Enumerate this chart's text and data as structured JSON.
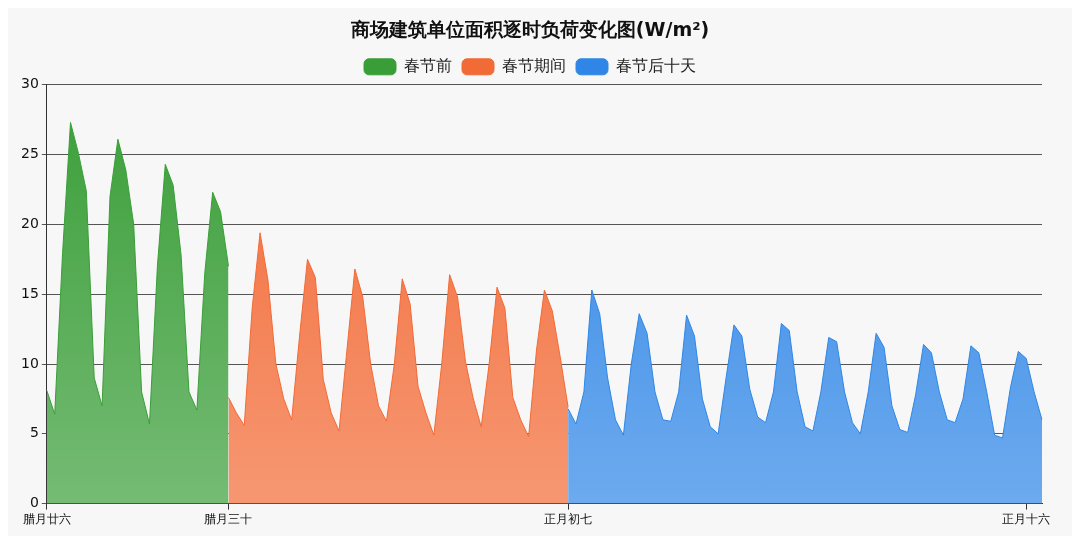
{
  "chart_data": {
    "type": "area",
    "title": "商场建筑单位面积逐时负荷变化图(W/m²)",
    "categories": [
      "腊月廿六",
      null,
      null,
      null,
      null,
      null,
      null,
      null,
      null,
      null,
      null,
      null,
      null,
      null,
      null,
      null,
      null,
      null,
      null,
      null,
      null,
      null,
      null,
      "腊月三十",
      null,
      null,
      null,
      null,
      null,
      null,
      null,
      null,
      null,
      null,
      null,
      null,
      null,
      null,
      null,
      null,
      null,
      null,
      null,
      null,
      null,
      null,
      null,
      null,
      null,
      null,
      null,
      null,
      null,
      null,
      null,
      null,
      null,
      null,
      null,
      null,
      null,
      null,
      null,
      null,
      null,
      null,
      "正月初七",
      null,
      null,
      null,
      null,
      null,
      null,
      null,
      null,
      null,
      null,
      null,
      null,
      null,
      null,
      null,
      null,
      null,
      null,
      null,
      null,
      null,
      null,
      null,
      null,
      null,
      null,
      null,
      null,
      null,
      null,
      null,
      null,
      null,
      null,
      null,
      null,
      null,
      null,
      null,
      null,
      null,
      null,
      null,
      null,
      null,
      null,
      null,
      null,
      null,
      null,
      null,
      null,
      null,
      null,
      null,
      null,
      null,
      "正月十六",
      null,
      null
    ],
    "ylim": [
      0,
      30
    ],
    "yticks": [
      0,
      5,
      10,
      15,
      20,
      25,
      30
    ],
    "grid": "y",
    "legend": "top",
    "series": [
      {
        "name": "春节前",
        "color": "#3a9e38",
        "values": [
          8.1,
          6.4,
          18,
          27.3,
          25.1,
          22.4,
          9.0,
          7.0,
          22,
          26.1,
          23.9,
          20,
          8,
          5.7,
          17,
          24.3,
          22.8,
          17.8,
          8,
          6.7,
          16.5,
          22.3,
          20.9,
          17,
          null,
          null,
          null,
          null,
          null,
          null,
          null,
          null,
          null,
          null,
          null,
          null,
          null,
          null,
          null,
          null,
          null,
          null,
          null,
          null,
          null,
          null,
          null,
          null,
          null,
          null,
          null,
          null,
          null,
          null,
          null,
          null,
          null,
          null,
          null,
          null,
          null,
          null,
          null,
          null,
          null,
          null,
          null,
          null,
          null,
          null,
          null,
          null,
          null,
          null,
          null,
          null,
          null,
          null,
          null,
          null,
          null,
          null,
          null,
          null,
          null,
          null,
          null,
          null,
          null,
          null,
          null,
          null,
          null,
          null,
          null,
          null,
          null,
          null,
          null,
          null,
          null,
          null,
          null,
          null,
          null,
          null,
          null,
          null,
          null,
          null,
          null,
          null,
          null,
          null,
          null,
          null,
          null,
          null,
          null,
          null,
          null,
          null,
          null,
          null,
          null,
          null,
          null
        ]
      },
      {
        "name": "春节期间",
        "color": "#f26a36",
        "values": [
          null,
          null,
          null,
          null,
          null,
          null,
          null,
          null,
          null,
          null,
          null,
          null,
          null,
          null,
          null,
          null,
          null,
          null,
          null,
          null,
          null,
          null,
          null,
          7.6,
          6.5,
          5.6,
          14,
          19.4,
          16,
          10,
          7.5,
          6.0,
          12,
          17.5,
          16.2,
          8.9,
          6.5,
          5.2,
          11,
          16.8,
          14.8,
          10,
          7,
          5.9,
          10,
          16.1,
          14.3,
          8.4,
          6.5,
          4.9,
          10,
          16.4,
          14.8,
          10.2,
          7.5,
          5.5,
          10,
          15.5,
          14,
          7.6,
          6,
          4.8,
          11,
          15.3,
          13.8,
          10.5,
          6.9,
          null,
          null,
          null,
          null,
          null,
          null,
          null,
          null,
          null,
          null,
          null,
          null,
          null,
          null,
          null,
          null,
          null,
          null,
          null,
          null,
          null,
          null,
          null,
          null,
          null,
          null,
          null,
          null,
          null,
          null,
          null,
          null,
          null,
          null,
          null,
          null,
          null,
          null,
          null,
          null,
          null,
          null,
          null,
          null,
          null,
          null,
          null,
          null,
          null,
          null,
          null,
          null,
          null,
          null,
          null,
          null,
          null,
          null,
          null,
          null
        ]
      },
      {
        "name": "春节后十天",
        "color": "#2f86e6",
        "values": [
          null,
          null,
          null,
          null,
          null,
          null,
          null,
          null,
          null,
          null,
          null,
          null,
          null,
          null,
          null,
          null,
          null,
          null,
          null,
          null,
          null,
          null,
          null,
          null,
          null,
          null,
          null,
          null,
          null,
          null,
          null,
          null,
          null,
          null,
          null,
          null,
          null,
          null,
          null,
          null,
          null,
          null,
          null,
          null,
          null,
          null,
          null,
          null,
          null,
          null,
          null,
          null,
          null,
          null,
          null,
          null,
          null,
          null,
          null,
          null,
          null,
          null,
          null,
          null,
          null,
          null,
          6.8,
          5.7,
          8,
          15.3,
          13.6,
          9,
          6,
          4.9,
          10,
          13.6,
          12.2,
          8,
          6,
          5.9,
          8,
          13.5,
          12,
          7.5,
          5.5,
          5,
          9,
          12.8,
          12,
          8.2,
          6.2,
          5.8,
          8,
          12.9,
          12.4,
          8,
          5.5,
          5.2,
          8,
          11.9,
          11.6,
          8,
          5.8,
          5,
          8,
          12.2,
          11.2,
          7,
          5.3,
          5.1,
          7.8,
          11.4,
          10.8,
          8,
          6,
          5.8,
          7.5,
          11.3,
          10.8,
          8,
          4.9,
          4.7,
          8.3,
          10.9,
          10.4,
          8,
          6.0
        ]
      }
    ]
  }
}
